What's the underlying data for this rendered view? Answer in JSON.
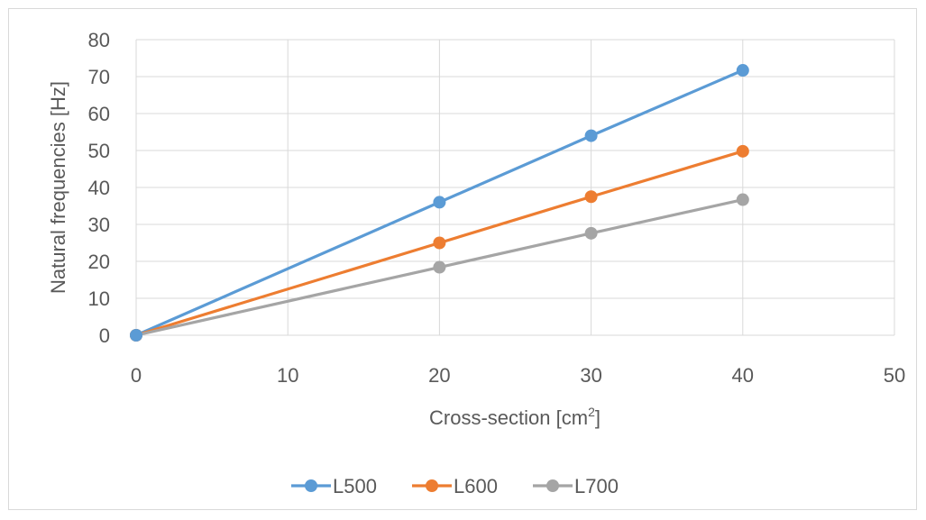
{
  "chart_data": {
    "type": "line",
    "xlabel": "Cross-section [cm2]",
    "xlabel_base": "Cross-section [cm",
    "xlabel_sup": "2",
    "xlabel_close": "]",
    "ylabel": "Natural frequencies [Hz]",
    "xlim": [
      0,
      50
    ],
    "ylim": [
      0,
      80
    ],
    "xticks": [
      "0",
      "10",
      "20",
      "30",
      "40",
      "50"
    ],
    "yticks": [
      "0",
      "10",
      "20",
      "30",
      "40",
      "50",
      "60",
      "70",
      "80"
    ],
    "grid": true,
    "legend_position": "bottom",
    "series": [
      {
        "name": "L500",
        "color": "#5b9bd5",
        "x": [
          0,
          20,
          30,
          40
        ],
        "y": [
          0,
          36,
          54,
          71.7
        ]
      },
      {
        "name": "L600",
        "color": "#ed7d31",
        "x": [
          0,
          20,
          30,
          40
        ],
        "y": [
          0,
          25,
          37.5,
          49.8
        ]
      },
      {
        "name": "L700",
        "color": "#a5a5a5",
        "x": [
          0,
          20,
          30,
          40
        ],
        "y": [
          0,
          18.4,
          27.6,
          36.7
        ]
      }
    ]
  }
}
